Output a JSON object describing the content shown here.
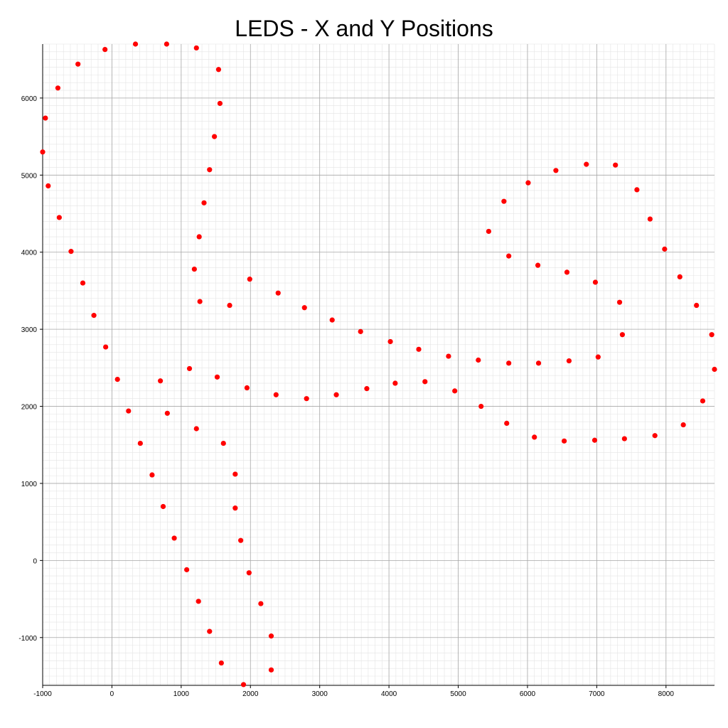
{
  "chart_data": {
    "type": "scatter",
    "title": "LEDS - X and Y Positions",
    "xlabel": "",
    "ylabel": "",
    "xlim": [
      -1000,
      8700
    ],
    "ylim": [
      -1620,
      6700
    ],
    "grid": true,
    "x_ticks": [
      -1000,
      0,
      1000,
      2000,
      3000,
      4000,
      5000,
      6000,
      7000,
      8000
    ],
    "y_ticks": [
      -1000,
      0,
      1000,
      2000,
      3000,
      4000,
      5000,
      6000
    ],
    "x_tick_labels": [
      "-1000",
      "0",
      "1000",
      "2000",
      "3000",
      "4000",
      "5000",
      "6000",
      "7000",
      "8000"
    ],
    "y_tick_labels": [
      "-1000",
      "0",
      "1000",
      "2000",
      "3000",
      "4000",
      "5000",
      "6000"
    ],
    "marker_color": "#ff0000",
    "points": [
      [
        -1000,
        5300
      ],
      [
        -960,
        5740
      ],
      [
        -920,
        4860
      ],
      [
        -780,
        6130
      ],
      [
        -760,
        4450
      ],
      [
        -590,
        4010
      ],
      [
        -490,
        6440
      ],
      [
        -420,
        3600
      ],
      [
        -260,
        3180
      ],
      [
        -100,
        6630
      ],
      [
        -90,
        2770
      ],
      [
        80,
        2350
      ],
      [
        340,
        6700
      ],
      [
        240,
        1940
      ],
      [
        410,
        1520
      ],
      [
        580,
        1110
      ],
      [
        700,
        2330
      ],
      [
        740,
        700
      ],
      [
        790,
        6700
      ],
      [
        800,
        1910
      ],
      [
        900,
        290
      ],
      [
        1080,
        -120
      ],
      [
        1120,
        2490
      ],
      [
        1190,
        3780
      ],
      [
        1220,
        6650
      ],
      [
        1220,
        1710
      ],
      [
        1250,
        -530
      ],
      [
        1260,
        4200
      ],
      [
        1270,
        3360
      ],
      [
        1330,
        4640
      ],
      [
        1410,
        -920
      ],
      [
        1410,
        5070
      ],
      [
        1480,
        5500
      ],
      [
        1520,
        2380
      ],
      [
        1540,
        6370
      ],
      [
        1560,
        5930
      ],
      [
        1580,
        -1330
      ],
      [
        1610,
        1520
      ],
      [
        1700,
        3310
      ],
      [
        1780,
        1120
      ],
      [
        1780,
        680
      ],
      [
        1860,
        260
      ],
      [
        1900,
        -1610
      ],
      [
        1950,
        2240
      ],
      [
        1980,
        -160
      ],
      [
        1990,
        3650
      ],
      [
        2150,
        -560
      ],
      [
        2300,
        -980
      ],
      [
        2300,
        -1420
      ],
      [
        2370,
        2150
      ],
      [
        2400,
        3470
      ],
      [
        2780,
        3280
      ],
      [
        2810,
        2100
      ],
      [
        3180,
        3120
      ],
      [
        3240,
        2150
      ],
      [
        3590,
        2970
      ],
      [
        3680,
        2230
      ],
      [
        4020,
        2840
      ],
      [
        4090,
        2300
      ],
      [
        4430,
        2740
      ],
      [
        4520,
        2320
      ],
      [
        4860,
        2650
      ],
      [
        4950,
        2200
      ],
      [
        5290,
        2600
      ],
      [
        5330,
        2000
      ],
      [
        5440,
        4270
      ],
      [
        5660,
        4660
      ],
      [
        5700,
        1780
      ],
      [
        5730,
        3950
      ],
      [
        5730,
        2560
      ],
      [
        6010,
        4900
      ],
      [
        6100,
        1600
      ],
      [
        6150,
        3830
      ],
      [
        6160,
        2560
      ],
      [
        6410,
        5060
      ],
      [
        6530,
        1550
      ],
      [
        6570,
        3740
      ],
      [
        6600,
        2590
      ],
      [
        6850,
        5140
      ],
      [
        6970,
        1560
      ],
      [
        6980,
        3610
      ],
      [
        7020,
        2640
      ],
      [
        7270,
        5130
      ],
      [
        7330,
        3350
      ],
      [
        7370,
        2930
      ],
      [
        7400,
        1580
      ],
      [
        7580,
        4810
      ],
      [
        7770,
        4430
      ],
      [
        7840,
        1620
      ],
      [
        7980,
        4040
      ],
      [
        8200,
        3680
      ],
      [
        8250,
        1760
      ],
      [
        8440,
        3310
      ],
      [
        8530,
        2070
      ],
      [
        8660,
        2930
      ],
      [
        8700,
        2480
      ]
    ]
  }
}
